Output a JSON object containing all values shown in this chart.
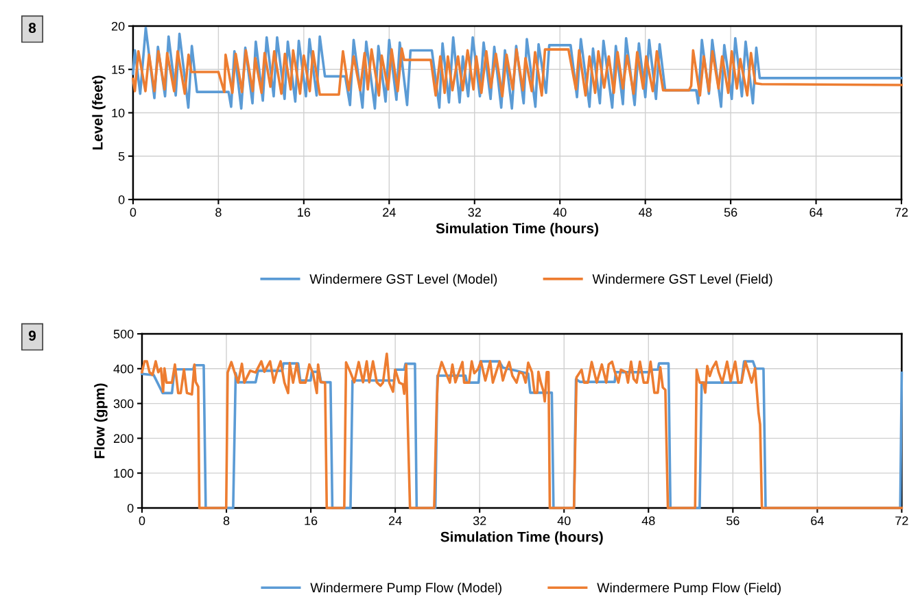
{
  "chart_data": [
    {
      "type": "line",
      "title": "8",
      "xlabel": "Simulation Time (hours)",
      "ylabel": "Level (feet)",
      "xlim": [
        0,
        72
      ],
      "xticks": [
        0,
        8,
        16,
        24,
        32,
        40,
        48,
        56,
        64,
        72
      ],
      "ylim": [
        0,
        20
      ],
      "yticks": [
        0,
        5,
        10,
        15,
        20
      ],
      "grid": true,
      "legend": "bottom",
      "marker": "none",
      "line_style": "solid",
      "series": [
        {
          "name": "Windermere GST Level (Model)",
          "color": "#5b9bd5",
          "x": [
            0,
            0.17,
            0.67,
            1.19,
            2.0,
            2.33,
            3.0,
            3.33,
            4.0,
            4.35,
            5.18,
            5.51,
            5.99,
            8.95,
            9.19,
            9.5,
            10.14,
            10.52,
            11.19,
            11.5,
            12.16,
            12.52,
            13.18,
            13.5,
            14.2,
            14.5,
            15.2,
            15.53,
            16.2,
            16.53,
            17.2,
            17.5,
            17.98,
            19.88,
            20.33,
            20.67,
            21.5,
            21.85,
            22.66,
            22.99,
            23.66,
            24.0,
            24.68,
            24.99,
            25.68,
            26.0,
            28.0,
            28.7,
            29.0,
            29.6,
            30.0,
            30.6,
            30.9,
            31.4,
            31.83,
            32.5,
            32.85,
            33.5,
            33.85,
            34.5,
            34.85,
            35.5,
            35.9,
            36.6,
            36.9,
            37.7,
            38.0,
            38.7,
            39.0,
            41.0,
            41.6,
            41.96,
            42.77,
            43.1,
            43.74,
            44.08,
            44.9,
            45.24,
            45.9,
            46.2,
            47.0,
            47.4,
            48.0,
            48.36,
            49.0,
            49.34,
            49.86,
            52.77,
            52.96,
            53.3,
            53.96,
            54.27,
            55.1,
            55.4,
            56.1,
            56.43,
            57.05,
            57.4,
            58.08,
            58.4,
            58.72,
            72
          ],
          "values": [
            14.5,
            17.2,
            12.2,
            19.8,
            11.7,
            17.6,
            11.9,
            18.8,
            12.0,
            19.1,
            10.6,
            17.7,
            12.4,
            12.4,
            10.7,
            17.1,
            10.5,
            17.5,
            11.1,
            18.2,
            11.4,
            18.7,
            11.9,
            18.7,
            11.6,
            18.2,
            11.3,
            18.3,
            11.9,
            18.5,
            12.0,
            18.8,
            14.2,
            14.2,
            10.9,
            18.4,
            10.6,
            18.2,
            10.5,
            17.7,
            11.3,
            18.4,
            11.5,
            18.1,
            10.9,
            17.2,
            17.2,
            10.6,
            18.0,
            11.2,
            18.7,
            11.2,
            16.5,
            11.9,
            18.7,
            11.9,
            18.1,
            11.6,
            17.6,
            10.6,
            17.2,
            10.5,
            17.7,
            11.1,
            18.5,
            10.7,
            17.9,
            12.3,
            17.8,
            17.8,
            11.8,
            18.5,
            10.7,
            17.4,
            11.1,
            18.3,
            10.6,
            17.7,
            11.0,
            18.6,
            10.9,
            18.0,
            11.8,
            18.4,
            11.6,
            17.9,
            12.6,
            12.6,
            11.1,
            18.4,
            12.2,
            18.4,
            10.7,
            17.8,
            11.6,
            18.6,
            11.9,
            18.2,
            11.1,
            17.5,
            14.0,
            14.0
          ]
        },
        {
          "name": "Windermere GST Level (Field)",
          "color": "#ed7d31",
          "x": [
            0,
            0.17,
            0.5,
            1.16,
            1.5,
            2.0,
            2.37,
            2.95,
            3.2,
            3.85,
            4.18,
            4.85,
            5.2,
            5.46,
            8.0,
            8.55,
            8.67,
            9.31,
            9.62,
            10.21,
            10.57,
            11.21,
            11.45,
            12.04,
            12.33,
            12.87,
            13.23,
            13.9,
            14.23,
            14.77,
            15.0,
            15.65,
            16.0,
            16.56,
            16.86,
            17.5,
            19.29,
            19.67,
            20.2,
            20.67,
            21.28,
            21.7,
            22.0,
            22.35,
            23.04,
            23.3,
            23.9,
            24.23,
            24.8,
            25.18,
            25.4,
            27.9,
            28.36,
            28.79,
            29.2,
            29.5,
            29.93,
            30.45,
            30.9,
            31.35,
            31.9,
            32.16,
            32.64,
            33.1,
            33.53,
            34.0,
            34.6,
            35.0,
            35.58,
            35.93,
            36.53,
            36.77,
            37.36,
            37.67,
            38.3,
            38.6,
            40.8,
            41.5,
            41.8,
            42.4,
            42.77,
            43.3,
            43.6,
            44.15,
            44.58,
            45.05,
            45.4,
            45.9,
            46.3,
            46.9,
            47.24,
            47.8,
            48.08,
            48.7,
            49.08,
            49.67,
            52.1,
            52.3,
            52.48,
            53.12,
            53.48,
            53.96,
            54.29,
            54.86,
            55.2,
            55.77,
            56.1,
            56.58,
            56.9,
            57.55,
            57.9,
            58.3,
            58.9,
            72
          ],
          "values": [
            13.9,
            12.5,
            17.1,
            12.5,
            16.7,
            12.5,
            17.1,
            12.7,
            16.9,
            12.5,
            17.1,
            12.2,
            16.7,
            14.7,
            14.7,
            12.4,
            16.7,
            12.3,
            16.8,
            12.4,
            17.2,
            12.5,
            16.3,
            12.3,
            16.9,
            13.0,
            17.1,
            12.2,
            16.8,
            12.7,
            17.2,
            12.2,
            16.6,
            12.5,
            17.1,
            12.1,
            12.1,
            17.1,
            12.6,
            16.5,
            12.6,
            16.9,
            12.7,
            17.3,
            12.0,
            16.6,
            12.7,
            17.3,
            12.5,
            17.4,
            16.1,
            16.1,
            12.0,
            16.5,
            12.3,
            16.5,
            12.6,
            16.5,
            12.6,
            17.2,
            12.7,
            16.5,
            12.3,
            17.1,
            12.9,
            16.8,
            11.9,
            16.7,
            12.7,
            17.3,
            12.6,
            16.3,
            12.5,
            17.0,
            12.0,
            17.3,
            17.3,
            12.7,
            17.2,
            12.0,
            16.5,
            12.3,
            17.1,
            12.9,
            16.5,
            12.3,
            17.0,
            12.8,
            16.6,
            12.2,
            17.0,
            12.8,
            16.5,
            12.5,
            17.1,
            12.6,
            12.6,
            13.1,
            17.2,
            12.0,
            16.5,
            12.5,
            17.1,
            12.8,
            16.5,
            12.3,
            17.1,
            12.8,
            16.2,
            12.0,
            16.9,
            13.4,
            13.3,
            13.2
          ]
        }
      ]
    },
    {
      "type": "line",
      "title": "9",
      "xlabel": "Simulation Time (hours)",
      "ylabel": "Flow (gpm)",
      "xlim": [
        0,
        72
      ],
      "xticks": [
        0,
        8,
        16,
        24,
        32,
        40,
        48,
        56,
        64,
        72
      ],
      "ylim": [
        0,
        500
      ],
      "yticks": [
        0,
        100,
        200,
        300,
        400,
        500
      ],
      "grid": true,
      "legend": "bottom",
      "marker": "none",
      "line_style": "solid",
      "series": [
        {
          "name": "Windermere Pump Flow (Model)",
          "color": "#5b9bd5",
          "x": [
            0,
            1.0,
            1.1,
            1.96,
            2.84,
            3.08,
            4.85,
            4.97,
            5.85,
            6.04,
            8.64,
            8.88,
            9.1,
            10.77,
            11.0,
            13.3,
            13.4,
            14.8,
            15.0,
            15.98,
            16.1,
            16.8,
            16.97,
            17.87,
            18.04,
            19.76,
            19.95,
            23.9,
            24.0,
            24.85,
            24.97,
            25.87,
            26.03,
            27.8,
            28.0,
            30.65,
            30.8,
            31.9,
            32.07,
            33.85,
            34.2,
            36.6,
            36.8,
            38.05,
            38.84,
            39.0,
            40.94,
            41.13,
            41.5,
            44.8,
            44.9,
            48.1,
            48.2,
            48.9,
            49.0,
            49.9,
            50.08,
            52.85,
            53.04,
            56.8,
            57.06,
            57.9,
            58.15,
            58.9,
            59.1,
            71.86,
            72
          ],
          "values": [
            385,
            382,
            382,
            330,
            330,
            398,
            398,
            410,
            410,
            0,
            0,
            387,
            361,
            361,
            394,
            394,
            415,
            415,
            366,
            366,
            391,
            391,
            361,
            361,
            0,
            0,
            366,
            366,
            397,
            397,
            414,
            414,
            0,
            0,
            380,
            380,
            360,
            360,
            421,
            421,
            403,
            386,
            331,
            331,
            331,
            0,
            0,
            370,
            362,
            362,
            390,
            390,
            397,
            397,
            415,
            415,
            0,
            0,
            360,
            360,
            421,
            421,
            400,
            400,
            0,
            0,
            388
          ]
        },
        {
          "name": "Windermere Pump Flow (Field)",
          "color": "#ed7d31",
          "x": [
            0,
            0.24,
            0.47,
            0.71,
            1.0,
            1.3,
            1.54,
            1.8,
            2.0,
            2.13,
            2.32,
            2.84,
            3.12,
            3.43,
            3.67,
            3.98,
            4.26,
            4.73,
            4.97,
            5.09,
            5.33,
            5.44,
            7.98,
            8.12,
            8.47,
            8.76,
            9.11,
            9.47,
            9.7,
            10.25,
            10.77,
            11.31,
            11.6,
            12.14,
            12.5,
            12.78,
            13.14,
            13.5,
            13.85,
            14.0,
            14.32,
            14.67,
            14.98,
            15.5,
            15.86,
            16.2,
            16.57,
            16.69,
            16.92,
            17.35,
            17.51,
            19.17,
            19.34,
            19.76,
            20.12,
            20.54,
            20.95,
            21.3,
            21.54,
            21.89,
            22.25,
            22.6,
            22.84,
            23.2,
            23.43,
            23.79,
            24.0,
            24.38,
            24.73,
            24.85,
            25.04,
            25.4,
            27.69,
            27.93,
            28.05,
            28.4,
            28.76,
            29.18,
            29.42,
            29.7,
            30.37,
            30.53,
            31.0,
            31.25,
            31.49,
            31.83,
            32.12,
            32.54,
            33.0,
            33.25,
            33.6,
            33.9,
            34.2,
            34.4,
            34.8,
            35.1,
            35.5,
            35.76,
            36.1,
            36.36,
            36.6,
            36.96,
            37.2,
            37.45,
            37.57,
            37.8,
            38.05,
            38.17,
            38.36,
            38.53,
            38.65,
            40.94,
            41.18,
            41.66,
            41.9,
            42.26,
            42.62,
            43.1,
            43.58,
            44.0,
            44.23,
            44.55,
            44.79,
            45.15,
            45.39,
            45.87,
            46.06,
            46.35,
            46.59,
            46.88,
            47.19,
            47.55,
            47.92,
            48.2,
            48.56,
            48.88,
            49.12,
            49.36,
            49.6,
            49.84,
            52.42,
            52.56,
            52.85,
            53.2,
            53.38,
            53.57,
            53.81,
            54.05,
            54.41,
            54.65,
            55.0,
            55.45,
            55.79,
            56.22,
            56.51,
            56.82,
            57.18,
            57.47,
            57.78,
            58.1,
            58.27,
            58.43,
            58.58,
            58.75,
            72
          ],
          "values": [
            390,
            421,
            421,
            390,
            382,
            421,
            390,
            401,
            334,
            401,
            360,
            360,
            412,
            330,
            330,
            398,
            330,
            326,
            412,
            362,
            348,
            0,
            0,
            389,
            419,
            391,
            360,
            414,
            360,
            394,
            389,
            421,
            391,
            421,
            360,
            391,
            421,
            360,
            330,
            416,
            360,
            414,
            360,
            360,
            412,
            387,
            330,
            412,
            362,
            360,
            0,
            0,
            418,
            389,
            361,
            419,
            361,
            421,
            361,
            421,
            361,
            351,
            360,
            443,
            360,
            334,
            397,
            360,
            355,
            328,
            412,
            0,
            0,
            301,
            380,
            419,
            391,
            360,
            412,
            361,
            419,
            360,
            360,
            421,
            387,
            398,
            421,
            366,
            421,
            360,
            394,
            421,
            366,
            387,
            419,
            380,
            360,
            390,
            386,
            360,
            417,
            390,
            331,
            331,
            391,
            360,
            335,
            306,
            390,
            390,
            0,
            0,
            375,
            397,
            360,
            360,
            419,
            360,
            412,
            360,
            412,
            420,
            393,
            360,
            397,
            390,
            360,
            420,
            371,
            360,
            420,
            360,
            360,
            420,
            331,
            331,
            404,
            346,
            339,
            0,
            0,
            397,
            360,
            360,
            331,
            408,
            379,
            401,
            420,
            390,
            360,
            420,
            364,
            420,
            360,
            360,
            420,
            393,
            360,
            401,
            335,
            273,
            240,
            0,
            0
          ]
        }
      ]
    }
  ]
}
